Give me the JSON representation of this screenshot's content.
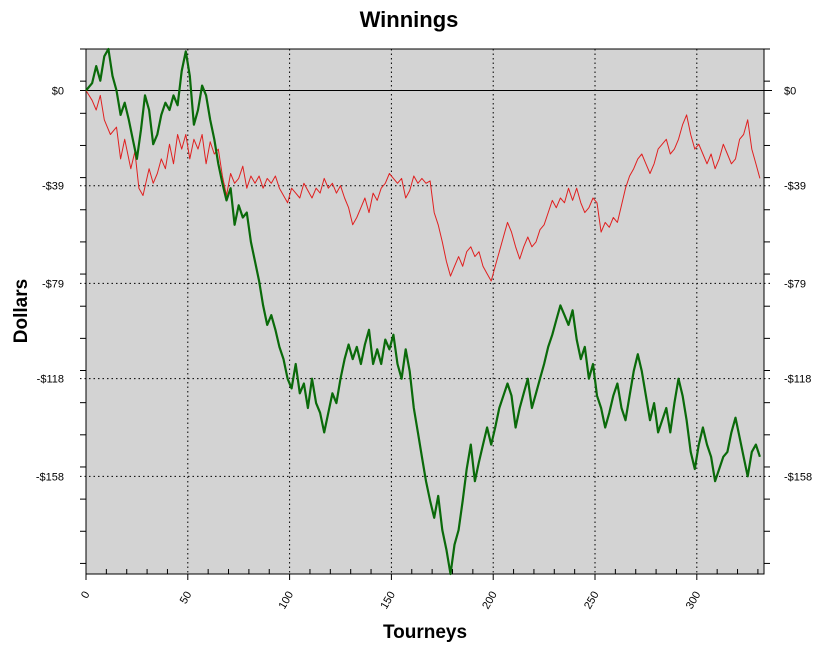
{
  "chart_data": {
    "type": "line",
    "title": "Winnings",
    "xlabel": "Tourneys",
    "ylabel": "Dollars",
    "xlim": [
      0,
      333
    ],
    "ylim": [
      -198,
      17
    ],
    "x_ticks": [
      0,
      50,
      100,
      150,
      200,
      250,
      300
    ],
    "x_tick_labels": [
      "0",
      "50",
      "100",
      "150",
      "200",
      "250",
      "300"
    ],
    "y_ticks": [
      0,
      -39,
      -79,
      -118,
      -158
    ],
    "y_tick_labels": [
      "$0",
      "-$39",
      "-$79",
      "-$118",
      "-$158"
    ],
    "grid": true,
    "plot_background": "#d3d3d3",
    "series": [
      {
        "color": "#e02020",
        "width": 1,
        "points": [
          [
            0,
            0
          ],
          [
            3,
            -4
          ],
          [
            5,
            -8
          ],
          [
            7,
            -2
          ],
          [
            9,
            -12
          ],
          [
            12,
            -18
          ],
          [
            15,
            -15
          ],
          [
            17,
            -28
          ],
          [
            19,
            -20
          ],
          [
            22,
            -32
          ],
          [
            24,
            -25
          ],
          [
            26,
            -40
          ],
          [
            28,
            -43
          ],
          [
            31,
            -32
          ],
          [
            33,
            -38
          ],
          [
            35,
            -34
          ],
          [
            37,
            -28
          ],
          [
            39,
            -32
          ],
          [
            41,
            -22
          ],
          [
            43,
            -30
          ],
          [
            45,
            -18
          ],
          [
            47,
            -24
          ],
          [
            49,
            -18
          ],
          [
            51,
            -28
          ],
          [
            53,
            -20
          ],
          [
            55,
            -24
          ],
          [
            57,
            -18
          ],
          [
            59,
            -30
          ],
          [
            61,
            -21
          ],
          [
            63,
            -26
          ],
          [
            65,
            -24
          ],
          [
            67,
            -35
          ],
          [
            69,
            -43
          ],
          [
            71,
            -34
          ],
          [
            73,
            -38
          ],
          [
            75,
            -36
          ],
          [
            77,
            -31
          ],
          [
            79,
            -40
          ],
          [
            81,
            -35
          ],
          [
            83,
            -38
          ],
          [
            85,
            -35
          ],
          [
            87,
            -40
          ],
          [
            89,
            -36
          ],
          [
            91,
            -38
          ],
          [
            93,
            -35
          ],
          [
            95,
            -40
          ],
          [
            97,
            -43
          ],
          [
            99,
            -46
          ],
          [
            101,
            -40
          ],
          [
            103,
            -42
          ],
          [
            105,
            -44
          ],
          [
            107,
            -38
          ],
          [
            109,
            -41
          ],
          [
            111,
            -44
          ],
          [
            113,
            -40
          ],
          [
            115,
            -42
          ],
          [
            117,
            -36
          ],
          [
            119,
            -40
          ],
          [
            121,
            -38
          ],
          [
            123,
            -42
          ],
          [
            125,
            -39
          ],
          [
            127,
            -44
          ],
          [
            129,
            -48
          ],
          [
            131,
            -55
          ],
          [
            133,
            -52
          ],
          [
            135,
            -48
          ],
          [
            137,
            -44
          ],
          [
            139,
            -50
          ],
          [
            141,
            -42
          ],
          [
            143,
            -45
          ],
          [
            145,
            -40
          ],
          [
            147,
            -38
          ],
          [
            149,
            -34
          ],
          [
            151,
            -36
          ],
          [
            153,
            -38
          ],
          [
            155,
            -36
          ],
          [
            157,
            -44
          ],
          [
            159,
            -41
          ],
          [
            161,
            -35
          ],
          [
            163,
            -38
          ],
          [
            165,
            -36
          ],
          [
            167,
            -38
          ],
          [
            169,
            -37
          ],
          [
            171,
            -50
          ],
          [
            173,
            -55
          ],
          [
            175,
            -62
          ],
          [
            177,
            -70
          ],
          [
            179,
            -76
          ],
          [
            181,
            -72
          ],
          [
            183,
            -68
          ],
          [
            185,
            -72
          ],
          [
            187,
            -66
          ],
          [
            189,
            -64
          ],
          [
            191,
            -68
          ],
          [
            193,
            -66
          ],
          [
            195,
            -72
          ],
          [
            197,
            -75
          ],
          [
            199,
            -78
          ],
          [
            201,
            -72
          ],
          [
            203,
            -66
          ],
          [
            205,
            -60
          ],
          [
            207,
            -54
          ],
          [
            209,
            -58
          ],
          [
            211,
            -64
          ],
          [
            213,
            -69
          ],
          [
            215,
            -64
          ],
          [
            217,
            -60
          ],
          [
            219,
            -64
          ],
          [
            221,
            -62
          ],
          [
            223,
            -57
          ],
          [
            225,
            -55
          ],
          [
            227,
            -50
          ],
          [
            229,
            -45
          ],
          [
            231,
            -48
          ],
          [
            233,
            -44
          ],
          [
            235,
            -46
          ],
          [
            237,
            -40
          ],
          [
            239,
            -45
          ],
          [
            241,
            -40
          ],
          [
            243,
            -46
          ],
          [
            245,
            -50
          ],
          [
            247,
            -48
          ],
          [
            249,
            -44
          ],
          [
            251,
            -46
          ],
          [
            253,
            -58
          ],
          [
            255,
            -54
          ],
          [
            257,
            -56
          ],
          [
            259,
            -52
          ],
          [
            261,
            -54
          ],
          [
            263,
            -47
          ],
          [
            265,
            -40
          ],
          [
            267,
            -35
          ],
          [
            269,
            -32
          ],
          [
            271,
            -28
          ],
          [
            273,
            -26
          ],
          [
            275,
            -30
          ],
          [
            277,
            -34
          ],
          [
            279,
            -30
          ],
          [
            281,
            -24
          ],
          [
            283,
            -22
          ],
          [
            285,
            -20
          ],
          [
            287,
            -26
          ],
          [
            289,
            -24
          ],
          [
            291,
            -20
          ],
          [
            293,
            -14
          ],
          [
            295,
            -10
          ],
          [
            297,
            -18
          ],
          [
            299,
            -24
          ],
          [
            301,
            -22
          ],
          [
            303,
            -26
          ],
          [
            305,
            -30
          ],
          [
            307,
            -26
          ],
          [
            309,
            -32
          ],
          [
            311,
            -28
          ],
          [
            313,
            -22
          ],
          [
            315,
            -26
          ],
          [
            317,
            -30
          ],
          [
            319,
            -28
          ],
          [
            321,
            -20
          ],
          [
            323,
            -18
          ],
          [
            325,
            -12
          ],
          [
            327,
            -24
          ],
          [
            329,
            -30
          ],
          [
            331,
            -36
          ]
        ]
      },
      {
        "color": "#0a6a0a",
        "width": 2.2,
        "points": [
          [
            0,
            0
          ],
          [
            3,
            3
          ],
          [
            5,
            10
          ],
          [
            7,
            4
          ],
          [
            9,
            14
          ],
          [
            11,
            17
          ],
          [
            13,
            6
          ],
          [
            15,
            0
          ],
          [
            17,
            -10
          ],
          [
            19,
            -5
          ],
          [
            21,
            -12
          ],
          [
            23,
            -20
          ],
          [
            25,
            -28
          ],
          [
            27,
            -16
          ],
          [
            29,
            -2
          ],
          [
            31,
            -8
          ],
          [
            33,
            -22
          ],
          [
            35,
            -18
          ],
          [
            37,
            -10
          ],
          [
            39,
            -5
          ],
          [
            41,
            -8
          ],
          [
            43,
            -2
          ],
          [
            45,
            -6
          ],
          [
            47,
            8
          ],
          [
            49,
            16
          ],
          [
            51,
            6
          ],
          [
            53,
            -14
          ],
          [
            55,
            -8
          ],
          [
            57,
            2
          ],
          [
            59,
            -2
          ],
          [
            61,
            -12
          ],
          [
            63,
            -20
          ],
          [
            65,
            -30
          ],
          [
            67,
            -38
          ],
          [
            69,
            -45
          ],
          [
            71,
            -40
          ],
          [
            73,
            -55
          ],
          [
            75,
            -47
          ],
          [
            77,
            -52
          ],
          [
            79,
            -50
          ],
          [
            81,
            -62
          ],
          [
            83,
            -70
          ],
          [
            85,
            -78
          ],
          [
            87,
            -88
          ],
          [
            89,
            -96
          ],
          [
            91,
            -92
          ],
          [
            93,
            -98
          ],
          [
            95,
            -105
          ],
          [
            97,
            -110
          ],
          [
            99,
            -118
          ],
          [
            101,
            -122
          ],
          [
            103,
            -112
          ],
          [
            105,
            -124
          ],
          [
            107,
            -120
          ],
          [
            109,
            -130
          ],
          [
            111,
            -118
          ],
          [
            113,
            -128
          ],
          [
            115,
            -132
          ],
          [
            117,
            -140
          ],
          [
            119,
            -132
          ],
          [
            121,
            -124
          ],
          [
            123,
            -128
          ],
          [
            125,
            -118
          ],
          [
            127,
            -110
          ],
          [
            129,
            -104
          ],
          [
            131,
            -110
          ],
          [
            133,
            -105
          ],
          [
            135,
            -112
          ],
          [
            137,
            -104
          ],
          [
            139,
            -98
          ],
          [
            141,
            -112
          ],
          [
            143,
            -106
          ],
          [
            145,
            -112
          ],
          [
            147,
            -102
          ],
          [
            149,
            -106
          ],
          [
            151,
            -100
          ],
          [
            153,
            -112
          ],
          [
            155,
            -118
          ],
          [
            157,
            -106
          ],
          [
            159,
            -115
          ],
          [
            161,
            -130
          ],
          [
            163,
            -140
          ],
          [
            165,
            -150
          ],
          [
            167,
            -160
          ],
          [
            169,
            -168
          ],
          [
            171,
            -175
          ],
          [
            173,
            -166
          ],
          [
            175,
            -180
          ],
          [
            177,
            -188
          ],
          [
            179,
            -198
          ],
          [
            181,
            -186
          ],
          [
            183,
            -180
          ],
          [
            185,
            -168
          ],
          [
            187,
            -155
          ],
          [
            189,
            -145
          ],
          [
            191,
            -160
          ],
          [
            193,
            -152
          ],
          [
            195,
            -145
          ],
          [
            197,
            -138
          ],
          [
            199,
            -145
          ],
          [
            201,
            -138
          ],
          [
            203,
            -130
          ],
          [
            205,
            -125
          ],
          [
            207,
            -120
          ],
          [
            209,
            -125
          ],
          [
            211,
            -138
          ],
          [
            213,
            -130
          ],
          [
            215,
            -124
          ],
          [
            217,
            -118
          ],
          [
            219,
            -130
          ],
          [
            221,
            -124
          ],
          [
            223,
            -118
          ],
          [
            225,
            -112
          ],
          [
            227,
            -105
          ],
          [
            229,
            -100
          ],
          [
            231,
            -94
          ],
          [
            233,
            -88
          ],
          [
            235,
            -92
          ],
          [
            237,
            -96
          ],
          [
            239,
            -90
          ],
          [
            241,
            -102
          ],
          [
            243,
            -110
          ],
          [
            245,
            -105
          ],
          [
            247,
            -118
          ],
          [
            249,
            -112
          ],
          [
            251,
            -125
          ],
          [
            253,
            -130
          ],
          [
            255,
            -138
          ],
          [
            257,
            -132
          ],
          [
            259,
            -125
          ],
          [
            261,
            -120
          ],
          [
            263,
            -130
          ],
          [
            265,
            -135
          ],
          [
            267,
            -125
          ],
          [
            269,
            -115
          ],
          [
            271,
            -108
          ],
          [
            273,
            -115
          ],
          [
            275,
            -125
          ],
          [
            277,
            -135
          ],
          [
            279,
            -128
          ],
          [
            281,
            -140
          ],
          [
            283,
            -135
          ],
          [
            285,
            -130
          ],
          [
            287,
            -140
          ],
          [
            289,
            -128
          ],
          [
            291,
            -118
          ],
          [
            293,
            -125
          ],
          [
            295,
            -135
          ],
          [
            297,
            -148
          ],
          [
            299,
            -155
          ],
          [
            301,
            -145
          ],
          [
            303,
            -138
          ],
          [
            305,
            -145
          ],
          [
            307,
            -150
          ],
          [
            309,
            -160
          ],
          [
            311,
            -155
          ],
          [
            313,
            -150
          ],
          [
            315,
            -148
          ],
          [
            317,
            -140
          ],
          [
            319,
            -134
          ],
          [
            321,
            -142
          ],
          [
            323,
            -150
          ],
          [
            325,
            -158
          ],
          [
            327,
            -148
          ],
          [
            329,
            -145
          ],
          [
            331,
            -150
          ]
        ]
      }
    ]
  }
}
